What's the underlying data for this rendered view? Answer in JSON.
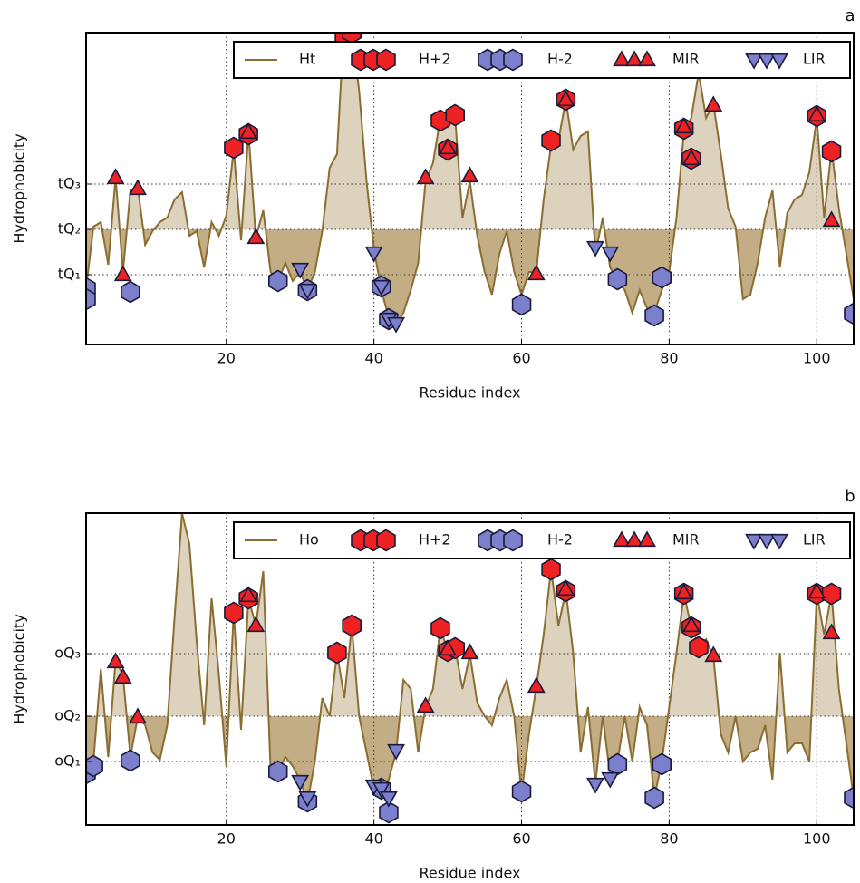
{
  "chart_data": [
    {
      "type": "line",
      "panel_label": "a",
      "xlabel": "Residue index",
      "ylabel": "Hydrophobicity",
      "xlim": [
        1,
        105
      ],
      "xticks": [
        20,
        40,
        60,
        80,
        100
      ],
      "ylim": [
        0,
        344
      ],
      "yticks": [
        {
          "value": 77,
          "label": "tQ₁"
        },
        {
          "value": 127,
          "label": "tQ₂"
        },
        {
          "value": 177,
          "label": "tQ₃"
        }
      ],
      "grid": true,
      "x": [
        1,
        2,
        3,
        4,
        5,
        6,
        7,
        8,
        9,
        10,
        11,
        12,
        13,
        14,
        15,
        16,
        17,
        18,
        19,
        20,
        21,
        22,
        23,
        24,
        25,
        26,
        27,
        28,
        29,
        30,
        31,
        32,
        33,
        34,
        35,
        36,
        37,
        38,
        39,
        40,
        41,
        42,
        43,
        44,
        45,
        46,
        47,
        48,
        49,
        50,
        51,
        52,
        53,
        54,
        55,
        56,
        57,
        58,
        59,
        60,
        61,
        62,
        63,
        64,
        65,
        66,
        67,
        68,
        69,
        70,
        71,
        72,
        73,
        74,
        75,
        76,
        77,
        78,
        79,
        80,
        81,
        82,
        83,
        84,
        85,
        86,
        87,
        88,
        89,
        90,
        91,
        92,
        93,
        94,
        95,
        96,
        97,
        98,
        99,
        100,
        101,
        102,
        103,
        104,
        105
      ],
      "series": [
        {
          "name": "Ht",
          "color": "#8c6d31",
          "marker": "line",
          "values": [
            62,
            130,
            135,
            88,
            184,
            80,
            170,
            174,
            110,
            125,
            135,
            140,
            160,
            168,
            120,
            125,
            85,
            135,
            120,
            142,
            215,
            115,
            235,
            118,
            148,
            80,
            70,
            90,
            70,
            80,
            60,
            80,
            125,
            195,
            210,
            360,
            344,
            280,
            180,
            105,
            60,
            30,
            22,
            35,
            60,
            90,
            180,
            200,
            250,
            240,
            250,
            140,
            180,
            120,
            80,
            55,
            100,
            125,
            80,
            55,
            80,
            80,
            160,
            220,
            225,
            270,
            215,
            230,
            235,
            100,
            140,
            85,
            70,
            60,
            35,
            60,
            40,
            35,
            60,
            80,
            140,
            235,
            250,
            300,
            250,
            265,
            210,
            150,
            130,
            50,
            55,
            90,
            140,
            170,
            85,
            145,
            160,
            165,
            190,
            250,
            140,
            215,
            150,
            100,
            50
          ]
        },
        {
          "name": "H+2",
          "color": "#ee2222",
          "marker": "hexagon",
          "x": [
            21,
            23,
            36,
            37,
            49,
            51,
            50,
            64,
            66,
            82,
            83,
            100,
            102
          ],
          "values": [
            217,
            232,
            340,
            344,
            247,
            253,
            215,
            225,
            270,
            238,
            205,
            252,
            213
          ]
        },
        {
          "name": "H-2",
          "color": "#7b7fcc",
          "marker": "hexagon",
          "x": [
            1,
            1,
            7,
            27,
            31,
            41,
            42,
            60,
            73,
            78,
            79,
            105
          ],
          "values": [
            62,
            50,
            58,
            70,
            60,
            64,
            28,
            44,
            72,
            32,
            74,
            34
          ]
        },
        {
          "name": "MIR",
          "color": "#ee2222",
          "marker": "triangle-up",
          "x": [
            5,
            6,
            8,
            23,
            24,
            47,
            50,
            53,
            62,
            66,
            82,
            83,
            86,
            100,
            102
          ],
          "values": [
            184,
            77,
            172,
            234,
            118,
            184,
            217,
            186,
            78,
            270,
            240,
            205,
            264,
            253,
            137
          ]
        },
        {
          "name": "LIR",
          "color": "#7b7fcc",
          "marker": "triangle-down",
          "x": [
            30,
            31,
            40,
            41,
            42,
            43,
            70,
            72
          ],
          "values": [
            83,
            60,
            101,
            64,
            28,
            23,
            107,
            101
          ]
        }
      ]
    },
    {
      "type": "line",
      "panel_label": "b",
      "xlabel": "Residue index",
      "ylabel": "Hydrophobicity",
      "xlim": [
        1,
        105
      ],
      "xticks": [
        20,
        40,
        60,
        80,
        100
      ],
      "ylim": [
        0,
        344
      ],
      "yticks": [
        {
          "value": 70,
          "label": "oQ₁"
        },
        {
          "value": 120,
          "label": "oQ₂"
        },
        {
          "value": 189,
          "label": "oQ₃"
        }
      ],
      "grid": true,
      "x": [
        1,
        2,
        3,
        4,
        5,
        6,
        7,
        8,
        9,
        10,
        11,
        12,
        13,
        14,
        15,
        16,
        17,
        18,
        19,
        20,
        21,
        22,
        23,
        24,
        25,
        26,
        27,
        28,
        29,
        30,
        31,
        32,
        33,
        34,
        35,
        36,
        37,
        38,
        39,
        40,
        41,
        42,
        43,
        44,
        45,
        46,
        47,
        48,
        49,
        50,
        51,
        52,
        53,
        54,
        55,
        56,
        57,
        58,
        59,
        60,
        61,
        62,
        63,
        64,
        65,
        66,
        67,
        68,
        69,
        70,
        71,
        72,
        73,
        74,
        75,
        76,
        77,
        78,
        79,
        80,
        81,
        82,
        83,
        84,
        85,
        86,
        87,
        88,
        89,
        90,
        91,
        92,
        93,
        94,
        95,
        96,
        97,
        98,
        99,
        100,
        101,
        102,
        103,
        104,
        105
      ],
      "series": [
        {
          "name": "Ho",
          "color": "#8c6d31",
          "marker": "line",
          "values": [
            55,
            70,
            172,
            75,
            182,
            165,
            75,
            119,
            110,
            80,
            72,
            110,
            230,
            344,
            310,
            200,
            110,
            250,
            165,
            65,
            235,
            105,
            250,
            220,
            280,
            60,
            60,
            75,
            65,
            50,
            25,
            70,
            140,
            120,
            190,
            140,
            220,
            120,
            80,
            40,
            40,
            50,
            80,
            160,
            150,
            80,
            130,
            150,
            217,
            192,
            195,
            150,
            188,
            135,
            120,
            110,
            140,
            160,
            120,
            35,
            100,
            152,
            210,
            282,
            220,
            258,
            190,
            80,
            130,
            45,
            120,
            55,
            70,
            120,
            70,
            130,
            110,
            30,
            70,
            130,
            190,
            255,
            218,
            198,
            205,
            185,
            100,
            80,
            120,
            70,
            80,
            84,
            110,
            50,
            190,
            80,
            90,
            90,
            70,
            255,
            210,
            255,
            150,
            90,
            30
          ]
        },
        {
          "name": "H+2",
          "color": "#ee2222",
          "marker": "hexagon",
          "x": [
            21,
            23,
            35,
            37,
            49,
            50,
            51,
            64,
            66,
            82,
            83,
            84,
            100,
            102
          ],
          "values": [
            234,
            250,
            190,
            220,
            217,
            192,
            195,
            282,
            258,
            255,
            218,
            196,
            255,
            255
          ]
        },
        {
          "name": "H-2",
          "color": "#7b7fcc",
          "marker": "hexagon",
          "x": [
            1,
            2,
            7,
            27,
            31,
            41,
            42,
            60,
            73,
            78,
            79,
            105
          ],
          "values": [
            57,
            65,
            71,
            59,
            26,
            40,
            14,
            37,
            67,
            30,
            67,
            30
          ]
        },
        {
          "name": "MIR",
          "color": "#ee2222",
          "marker": "triangle-up",
          "x": [
            5,
            6,
            8,
            23,
            24,
            47,
            50,
            53,
            62,
            66,
            82,
            83,
            86,
            100,
            102
          ],
          "values": [
            180,
            163,
            119,
            253,
            220,
            131,
            194,
            190,
            153,
            260,
            256,
            220,
            187,
            257,
            212
          ]
        },
        {
          "name": "LIR",
          "color": "#7b7fcc",
          "marker": "triangle-down",
          "x": [
            30,
            31,
            40,
            41,
            42,
            43,
            70,
            72
          ],
          "values": [
            48,
            30,
            43,
            40,
            30,
            82,
            45,
            51
          ]
        }
      ]
    }
  ]
}
